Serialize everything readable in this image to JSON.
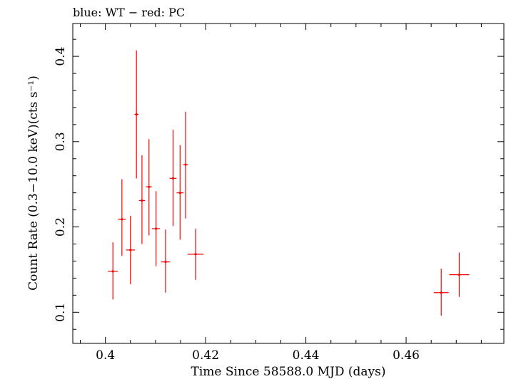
{
  "chart_data": {
    "type": "scatter",
    "title": "blue: WT − red: PC",
    "xlabel": "Time Since 58588.0 MJD (days)",
    "ylabel": "Count Rate (0.3−10.0 keV)(cts s⁻¹)",
    "xlim": [
      0.3935,
      0.4795
    ],
    "ylim": [
      0.0635,
      0.4385
    ],
    "xticks": [
      0.4,
      0.42,
      0.44,
      0.46
    ],
    "xtick_labels": [
      "0.4",
      "0.42",
      "0.44",
      "0.46"
    ],
    "yticks": [
      0.1,
      0.2,
      0.3,
      0.4
    ],
    "ytick_labels": [
      "0.1",
      "0.2",
      "0.3",
      "0.4"
    ],
    "grid": false,
    "series": [
      {
        "mode": "PC",
        "color": "#ff0000",
        "points": [
          {
            "x": 0.4015,
            "xerr": 0.001,
            "y": 0.148,
            "ylo": 0.115,
            "yhi": 0.182
          },
          {
            "x": 0.4033,
            "xerr": 0.0008,
            "y": 0.209,
            "ylo": 0.166,
            "yhi": 0.256
          },
          {
            "x": 0.405,
            "xerr": 0.0009,
            "y": 0.173,
            "ylo": 0.133,
            "yhi": 0.213
          },
          {
            "x": 0.4062,
            "xerr": 0.0004,
            "y": 0.332,
            "ylo": 0.257,
            "yhi": 0.407
          },
          {
            "x": 0.4073,
            "xerr": 0.0006,
            "y": 0.231,
            "ylo": 0.18,
            "yhi": 0.284
          },
          {
            "x": 0.4087,
            "xerr": 0.0006,
            "y": 0.247,
            "ylo": 0.19,
            "yhi": 0.303
          },
          {
            "x": 0.4101,
            "xerr": 0.0008,
            "y": 0.198,
            "ylo": 0.154,
            "yhi": 0.242
          },
          {
            "x": 0.412,
            "xerr": 0.0009,
            "y": 0.159,
            "ylo": 0.123,
            "yhi": 0.197
          },
          {
            "x": 0.4135,
            "xerr": 0.0007,
            "y": 0.257,
            "ylo": 0.201,
            "yhi": 0.314
          },
          {
            "x": 0.4149,
            "xerr": 0.0007,
            "y": 0.24,
            "ylo": 0.185,
            "yhi": 0.296
          },
          {
            "x": 0.416,
            "xerr": 0.0005,
            "y": 0.273,
            "ylo": 0.21,
            "yhi": 0.335
          },
          {
            "x": 0.418,
            "xerr": 0.0016,
            "y": 0.168,
            "ylo": 0.138,
            "yhi": 0.198
          },
          {
            "x": 0.467,
            "xerr": 0.0015,
            "y": 0.123,
            "ylo": 0.096,
            "yhi": 0.151
          },
          {
            "x": 0.4706,
            "xerr": 0.002,
            "y": 0.144,
            "ylo": 0.118,
            "yhi": 0.17
          }
        ]
      }
    ]
  }
}
